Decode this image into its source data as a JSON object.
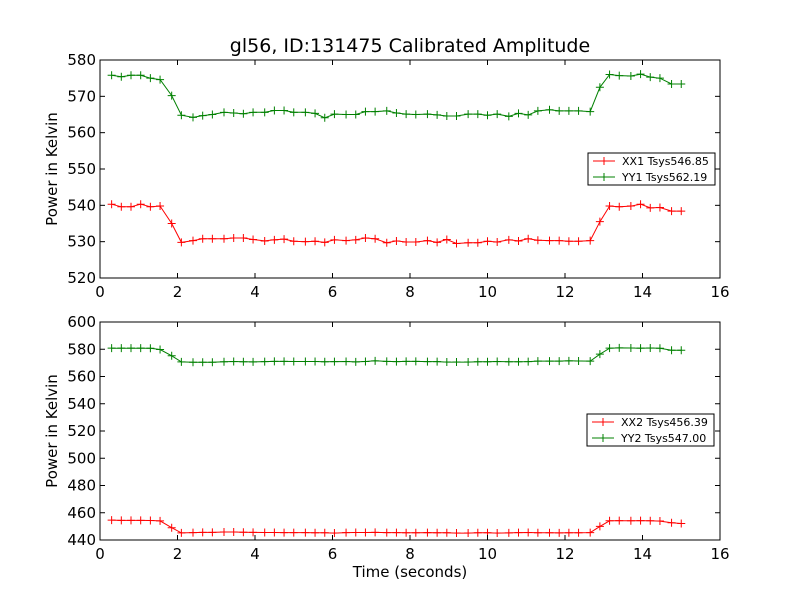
{
  "figure": {
    "title": "gl56, ID:131475 Calibrated Amplitude"
  },
  "chart_data": [
    {
      "type": "line",
      "title": "gl56, ID:131475 Calibrated Amplitude",
      "xlabel": "",
      "ylabel": "Power in Kelvin",
      "xlim": [
        0,
        16
      ],
      "ylim": [
        520,
        580
      ],
      "xticks": [
        0,
        2,
        4,
        6,
        8,
        10,
        12,
        14,
        16
      ],
      "yticks": [
        520,
        530,
        540,
        550,
        560,
        570,
        580
      ],
      "grid": false,
      "legend_position": "center-right",
      "marker": "+",
      "x": [
        0.3,
        0.55,
        0.8,
        1.05,
        1.3,
        1.55,
        1.85,
        2.1,
        2.4,
        2.65,
        2.9,
        3.2,
        3.45,
        3.7,
        3.95,
        4.25,
        4.5,
        4.75,
        5.0,
        5.3,
        5.55,
        5.8,
        6.05,
        6.35,
        6.6,
        6.85,
        7.1,
        7.4,
        7.65,
        7.9,
        8.15,
        8.45,
        8.7,
        8.95,
        9.2,
        9.5,
        9.75,
        10.0,
        10.25,
        10.55,
        10.8,
        11.05,
        11.3,
        11.6,
        11.85,
        12.1,
        12.35,
        12.65,
        12.9,
        13.15,
        13.4,
        13.7,
        13.95,
        14.2,
        14.45,
        14.75,
        15.0
      ],
      "series": [
        {
          "name": "XX1 Tsys546.85",
          "color": "#ff0000",
          "values": [
            540.3,
            539.6,
            539.6,
            540.3,
            539.6,
            539.8,
            535.0,
            529.8,
            530.3,
            530.8,
            530.8,
            530.8,
            531.0,
            531.0,
            530.6,
            530.2,
            530.5,
            530.7,
            530.1,
            530.0,
            530.1,
            529.8,
            530.5,
            530.3,
            530.5,
            531.0,
            530.8,
            529.7,
            530.2,
            529.9,
            529.9,
            530.3,
            529.8,
            530.6,
            529.5,
            529.7,
            529.7,
            530.1,
            529.9,
            530.5,
            530.2,
            530.8,
            530.4,
            530.3,
            530.3,
            530.1,
            530.1,
            530.3,
            535.5,
            539.8,
            539.6,
            539.8,
            540.3,
            539.3,
            539.4,
            538.4,
            538.4
          ]
        },
        {
          "name": "YY1 Tsys562.19",
          "color": "#008000",
          "values": [
            575.8,
            575.4,
            575.8,
            575.8,
            575.0,
            574.6,
            570.2,
            564.8,
            564.2,
            564.7,
            565.0,
            565.6,
            565.4,
            565.2,
            565.6,
            565.6,
            566.1,
            566.1,
            565.6,
            565.6,
            565.3,
            564.1,
            565.1,
            565.0,
            565.0,
            565.8,
            565.8,
            566.0,
            565.4,
            565.1,
            565.0,
            565.1,
            564.9,
            564.6,
            564.6,
            565.1,
            565.1,
            564.8,
            565.1,
            564.5,
            565.3,
            564.9,
            566.0,
            566.3,
            566.0,
            566.0,
            566.0,
            565.8,
            572.5,
            576.0,
            575.7,
            575.6,
            576.1,
            575.3,
            575.0,
            573.4,
            573.4
          ]
        }
      ]
    },
    {
      "type": "line",
      "title": "",
      "xlabel": "Time (seconds)",
      "ylabel": "Power in Kelvin",
      "xlim": [
        0,
        16
      ],
      "ylim": [
        440,
        600
      ],
      "xticks": [
        0,
        2,
        4,
        6,
        8,
        10,
        12,
        14,
        16
      ],
      "yticks": [
        440,
        460,
        480,
        500,
        520,
        540,
        560,
        580,
        600
      ],
      "grid": false,
      "legend_position": "center-right",
      "marker": "+",
      "x": [
        0.3,
        0.55,
        0.8,
        1.05,
        1.3,
        1.55,
        1.85,
        2.1,
        2.4,
        2.65,
        2.9,
        3.2,
        3.45,
        3.7,
        3.95,
        4.25,
        4.5,
        4.75,
        5.0,
        5.3,
        5.55,
        5.8,
        6.05,
        6.35,
        6.6,
        6.85,
        7.1,
        7.4,
        7.65,
        7.9,
        8.15,
        8.45,
        8.7,
        8.95,
        9.2,
        9.5,
        9.75,
        10.0,
        10.25,
        10.55,
        10.8,
        11.05,
        11.3,
        11.6,
        11.85,
        12.1,
        12.35,
        12.65,
        12.9,
        13.15,
        13.4,
        13.7,
        13.95,
        14.2,
        14.45,
        14.75,
        15.0
      ],
      "series": [
        {
          "name": "XX2 Tsys456.39",
          "color": "#ff0000",
          "values": [
            454.6,
            454.4,
            454.4,
            454.4,
            454.3,
            454.0,
            449.0,
            445.2,
            445.4,
            445.6,
            445.6,
            445.9,
            445.9,
            445.7,
            445.6,
            445.5,
            445.5,
            445.4,
            445.4,
            445.4,
            445.3,
            445.3,
            445.1,
            445.4,
            445.5,
            445.5,
            445.6,
            445.4,
            445.4,
            445.3,
            445.3,
            445.4,
            445.3,
            445.3,
            445.1,
            445.1,
            445.3,
            445.3,
            445.1,
            445.2,
            445.4,
            445.5,
            445.3,
            445.3,
            445.2,
            445.3,
            445.3,
            445.4,
            450.0,
            454.1,
            454.2,
            454.1,
            454.2,
            454.1,
            453.9,
            452.7,
            452.1
          ]
        },
        {
          "name": "YY2 Tsys547.00",
          "color": "#008000",
          "values": [
            580.8,
            580.8,
            580.8,
            580.8,
            580.7,
            579.8,
            575.2,
            570.7,
            570.5,
            570.5,
            570.5,
            570.8,
            571.0,
            570.8,
            570.7,
            570.9,
            571.1,
            571.1,
            571.0,
            571.0,
            571.0,
            570.8,
            570.9,
            571.0,
            570.7,
            571.0,
            571.5,
            571.1,
            570.9,
            571.1,
            571.1,
            570.9,
            570.9,
            570.6,
            570.6,
            570.6,
            570.8,
            570.8,
            571.0,
            570.8,
            570.8,
            570.9,
            571.3,
            571.3,
            571.3,
            571.5,
            571.4,
            571.3,
            576.4,
            580.8,
            581.0,
            580.9,
            580.8,
            580.9,
            580.7,
            579.3,
            579.3
          ]
        }
      ]
    }
  ]
}
